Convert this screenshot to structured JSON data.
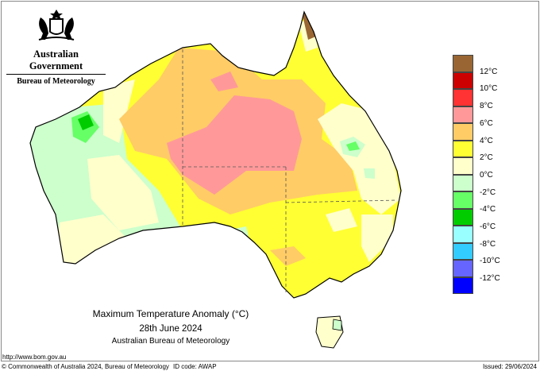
{
  "logo": {
    "line1": "Australian Government",
    "line2": "Bureau of Meteorology"
  },
  "map": {
    "title": "Maximum Temperature Anomaly (°C)",
    "date": "28th June 2024",
    "source": "Australian Bureau of Meteorology",
    "url": "http://www.bom.gov.au"
  },
  "legend": {
    "colors": [
      "#996633",
      "#cc0000",
      "#ff3333",
      "#ff9999",
      "#ffcc66",
      "#ffff33",
      "#ffffcc",
      "#ccffcc",
      "#66ff66",
      "#00cc00",
      "#99ffff",
      "#33ccff",
      "#6666ff",
      "#0000ff"
    ],
    "labels": [
      "12°C",
      "10°C",
      "8°C",
      "6°C",
      "4°C",
      "2°C",
      "0°C",
      "-2°C",
      "-4°C",
      "-6°C",
      "-8°C",
      "-10°C",
      "-12°C"
    ]
  },
  "footer": {
    "copyright": "© Commonwealth of Australia 2024, Bureau of Meteorology",
    "id_code": "ID code: AWAP",
    "issued": "Issued: 29/06/2024"
  }
}
